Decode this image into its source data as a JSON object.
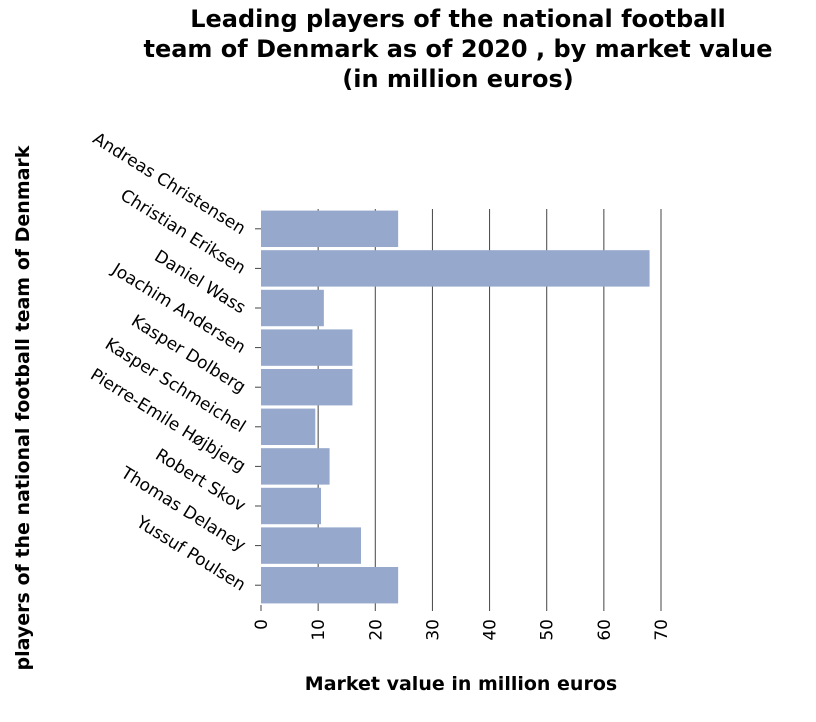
{
  "chart_data": {
    "type": "bar",
    "orientation": "horizontal",
    "title_lines": [
      "Leading players of the national football",
      "team of Denmark as of 2020 , by market value",
      "(in million euros)"
    ],
    "xlabel": "Market value in million euros",
    "ylabel": "players of the national football team of Denmark",
    "categories": [
      "Andreas Christensen",
      "Christian Eriksen",
      "Daniel Wass",
      "Joachim Andersen",
      "Kasper Dolberg",
      "Kasper Schmeichel",
      "Pierre-Emile Højbjerg",
      "Robert Skov",
      "Thomas Delaney",
      "Yussuf Poulsen"
    ],
    "values": [
      24,
      68,
      11,
      16,
      16,
      9.5,
      12,
      10.5,
      17.5,
      24
    ],
    "xlim": [
      0,
      70
    ],
    "xticks": [
      "0",
      "10",
      "20",
      "30",
      "40",
      "50",
      "60",
      "70"
    ],
    "grid": "vertical",
    "bar_color": "#96a8cc",
    "grid_color": "#444444"
  }
}
